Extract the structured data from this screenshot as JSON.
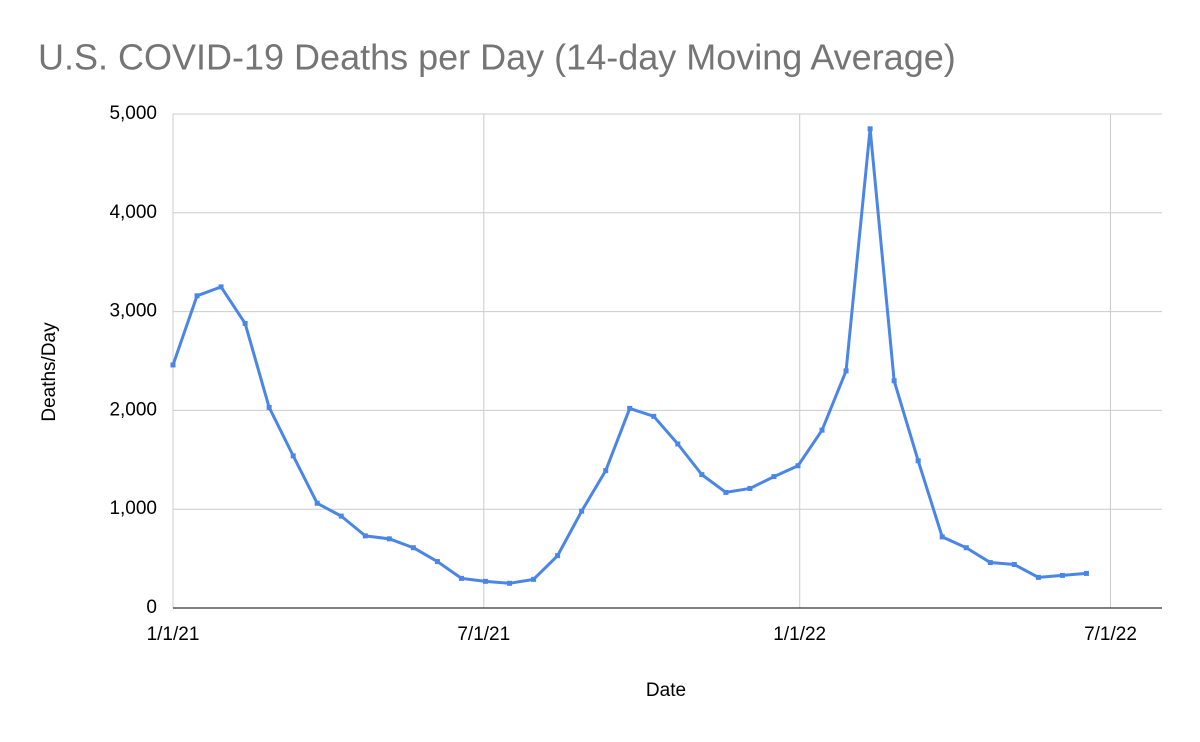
{
  "chart_data": {
    "type": "line",
    "title": "U.S. COVID-19 Deaths per Day (14-day Moving Average)",
    "x_label": "Date",
    "y_label": "Deaths/Day",
    "x": [
      "2021-01-01",
      "2021-01-15",
      "2021-01-29",
      "2021-02-12",
      "2021-02-26",
      "2021-03-12",
      "2021-03-26",
      "2021-04-09",
      "2021-04-23",
      "2021-05-07",
      "2021-05-21",
      "2021-06-04",
      "2021-06-18",
      "2021-07-02",
      "2021-07-16",
      "2021-07-30",
      "2021-08-13",
      "2021-08-27",
      "2021-09-10",
      "2021-09-24",
      "2021-10-08",
      "2021-10-22",
      "2021-11-05",
      "2021-11-19",
      "2021-12-03",
      "2021-12-17",
      "2021-12-31",
      "2022-01-14",
      "2022-01-28",
      "2022-02-11",
      "2022-02-25",
      "2022-03-11",
      "2022-03-25",
      "2022-04-08",
      "2022-04-22",
      "2022-05-06",
      "2022-05-20",
      "2022-06-03",
      "2022-06-17"
    ],
    "series": [
      {
        "name": "Deaths/Day",
        "color": "#4a86e8",
        "values": [
          2460,
          3160,
          3250,
          2880,
          2030,
          1540,
          1060,
          930,
          730,
          700,
          610,
          470,
          300,
          270,
          250,
          290,
          530,
          980,
          1390,
          2020,
          1940,
          1660,
          1350,
          1170,
          1210,
          1330,
          1440,
          1800,
          2400,
          4850,
          2300,
          1490,
          720,
          610,
          460,
          440,
          310,
          330,
          350
        ]
      }
    ],
    "xlim": [
      "2021-01-01",
      "2022-07-31"
    ],
    "xticks": [
      {
        "value": "2021-01-01",
        "label": "1/1/21"
      },
      {
        "value": "2021-07-01",
        "label": "7/1/21"
      },
      {
        "value": "2022-01-01",
        "label": "1/1/22"
      },
      {
        "value": "2022-07-01",
        "label": "7/1/22"
      }
    ],
    "ylim": [
      0,
      5000
    ],
    "yticks": [
      0,
      {
        "value": 1000,
        "label": "1,000"
      },
      {
        "value": 2000,
        "label": "2,000"
      },
      {
        "value": 3000,
        "label": "3,000"
      },
      {
        "value": 4000,
        "label": "4,000"
      },
      {
        "value": 5000,
        "label": "5,000"
      }
    ],
    "grid": true
  }
}
